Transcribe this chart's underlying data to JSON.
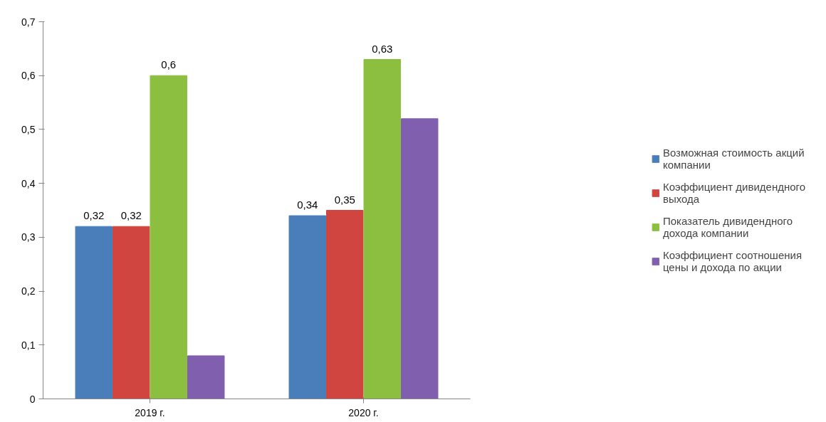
{
  "chart_data": {
    "type": "bar",
    "categories": [
      "2019 г.",
      "2020 г."
    ],
    "series": [
      {
        "name": "Возможная стоимость акций компании",
        "color": "#4a7ebb",
        "values": [
          0.32,
          0.34
        ],
        "value_labels": [
          "0,32",
          "0,34"
        ]
      },
      {
        "name": "Коэффициент дивидендного выхода",
        "color": "#d0453f",
        "values": [
          0.32,
          0.35
        ],
        "value_labels": [
          "0,32",
          "0,35"
        ]
      },
      {
        "name": "Показатель дивидендного дохода компании",
        "color": "#8cbf3f",
        "values": [
          0.6,
          0.63
        ],
        "value_labels": [
          "0,6",
          "0,63"
        ]
      },
      {
        "name": "Коэффициент соотношения цены и дохода по акции",
        "color": "#7f5fae",
        "values": [
          0.08,
          0.52
        ],
        "value_labels": [
          null,
          null
        ]
      }
    ],
    "ylim": [
      0,
      0.7
    ],
    "yticks": [
      0,
      {
        "value": 0.1,
        "label": "0,1"
      },
      {
        "value": 0.2,
        "label": "0,2"
      },
      {
        "value": 0.3,
        "label": "0,3"
      },
      {
        "value": 0.4,
        "label": "0,4"
      },
      {
        "value": 0.5,
        "label": "0,5"
      },
      {
        "value": 0.6,
        "label": "0,6"
      },
      {
        "value": 0.7,
        "label": "0,7"
      }
    ],
    "grid": false,
    "legend": "right"
  }
}
